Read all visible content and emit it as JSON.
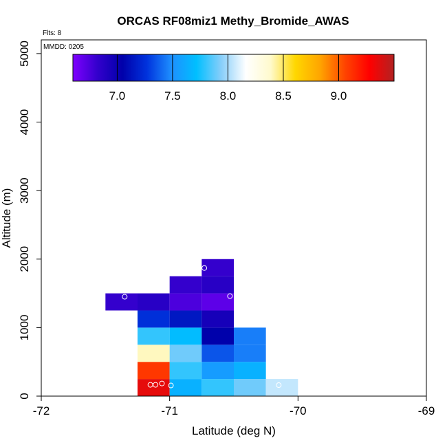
{
  "chart_data": {
    "type": "heatmap",
    "title": "ORCAS RF08miz1 Methy_Bromide_AWAS",
    "subtitle_flights": "Flts: 8",
    "annotation": "MMDD: 0205",
    "xlabel": "Latitude (deg N)",
    "ylabel": "Altitude (m)",
    "xlim": [
      -72,
      -69
    ],
    "ylim": [
      0,
      5200
    ],
    "xticks": [
      -72,
      -71,
      -70,
      -69
    ],
    "xtick_labels": [
      "-72",
      "-71",
      "-70",
      "-69"
    ],
    "yticks": [
      0,
      1000,
      2000,
      3000,
      4000,
      5000
    ],
    "ytick_labels": [
      "0",
      "1000",
      "2000",
      "3000",
      "4000",
      "5000"
    ],
    "bin_width_deg": 0.25,
    "bin_height_m": 250,
    "colorbar": {
      "range": [
        6.6,
        9.5
      ],
      "ticks": [
        7.0,
        7.5,
        8.0,
        8.5,
        9.0
      ],
      "tick_labels": [
        "7.0",
        "7.5",
        "8.0",
        "8.5",
        "9.0"
      ],
      "stops": [
        "#7f00ff",
        "#3300cc",
        "#0000aa",
        "#0033dd",
        "#1e90ff",
        "#00bfff",
        "#87cefa",
        "#ffffff",
        "#fffacd",
        "#ffd700",
        "#ffa500",
        "#ff4500",
        "#ff0000",
        "#b22222"
      ]
    },
    "cells": [
      {
        "lat": -71.25,
        "alt": 0,
        "value": 9.35
      },
      {
        "lat": -71.0,
        "alt": 0,
        "value": 7.65
      },
      {
        "lat": -70.75,
        "alt": 0,
        "value": 7.8
      },
      {
        "lat": -70.5,
        "alt": 0,
        "value": 7.9
      },
      {
        "lat": -70.25,
        "alt": 0,
        "value": 8.05
      },
      {
        "lat": -71.25,
        "alt": 250,
        "value": 9.1
      },
      {
        "lat": -71.0,
        "alt": 250,
        "value": 7.8
      },
      {
        "lat": -70.75,
        "alt": 250,
        "value": 7.55
      },
      {
        "lat": -70.5,
        "alt": 250,
        "value": 7.65
      },
      {
        "lat": -71.25,
        "alt": 500,
        "value": 8.4
      },
      {
        "lat": -71.0,
        "alt": 500,
        "value": 7.9
      },
      {
        "lat": -70.75,
        "alt": 500,
        "value": 7.35
      },
      {
        "lat": -70.5,
        "alt": 500,
        "value": 7.45
      },
      {
        "lat": -71.25,
        "alt": 750,
        "value": 7.8
      },
      {
        "lat": -71.0,
        "alt": 750,
        "value": 7.7
      },
      {
        "lat": -70.75,
        "alt": 750,
        "value": 7.05
      },
      {
        "lat": -70.5,
        "alt": 750,
        "value": 7.45
      },
      {
        "lat": -71.25,
        "alt": 1000,
        "value": 7.25
      },
      {
        "lat": -71.0,
        "alt": 1000,
        "value": 7.15
      },
      {
        "lat": -70.75,
        "alt": 1000,
        "value": 6.95
      },
      {
        "lat": -71.5,
        "alt": 1250,
        "value": 6.82
      },
      {
        "lat": -71.25,
        "alt": 1250,
        "value": 6.87
      },
      {
        "lat": -71.0,
        "alt": 1250,
        "value": 6.75
      },
      {
        "lat": -70.75,
        "alt": 1250,
        "value": 6.7
      },
      {
        "lat": -71.0,
        "alt": 1500,
        "value": 6.82
      },
      {
        "lat": -70.75,
        "alt": 1500,
        "value": 6.87
      },
      {
        "lat": -70.75,
        "alt": 1750,
        "value": 6.82
      }
    ],
    "sample_points": [
      {
        "lat": -71.35,
        "alt": 1450
      },
      {
        "lat": -70.73,
        "alt": 1870
      },
      {
        "lat": -70.53,
        "alt": 1460
      },
      {
        "lat": -71.15,
        "alt": 165
      },
      {
        "lat": -71.11,
        "alt": 165
      },
      {
        "lat": -71.06,
        "alt": 185
      },
      {
        "lat": -70.99,
        "alt": 155
      },
      {
        "lat": -70.15,
        "alt": 160
      }
    ]
  }
}
